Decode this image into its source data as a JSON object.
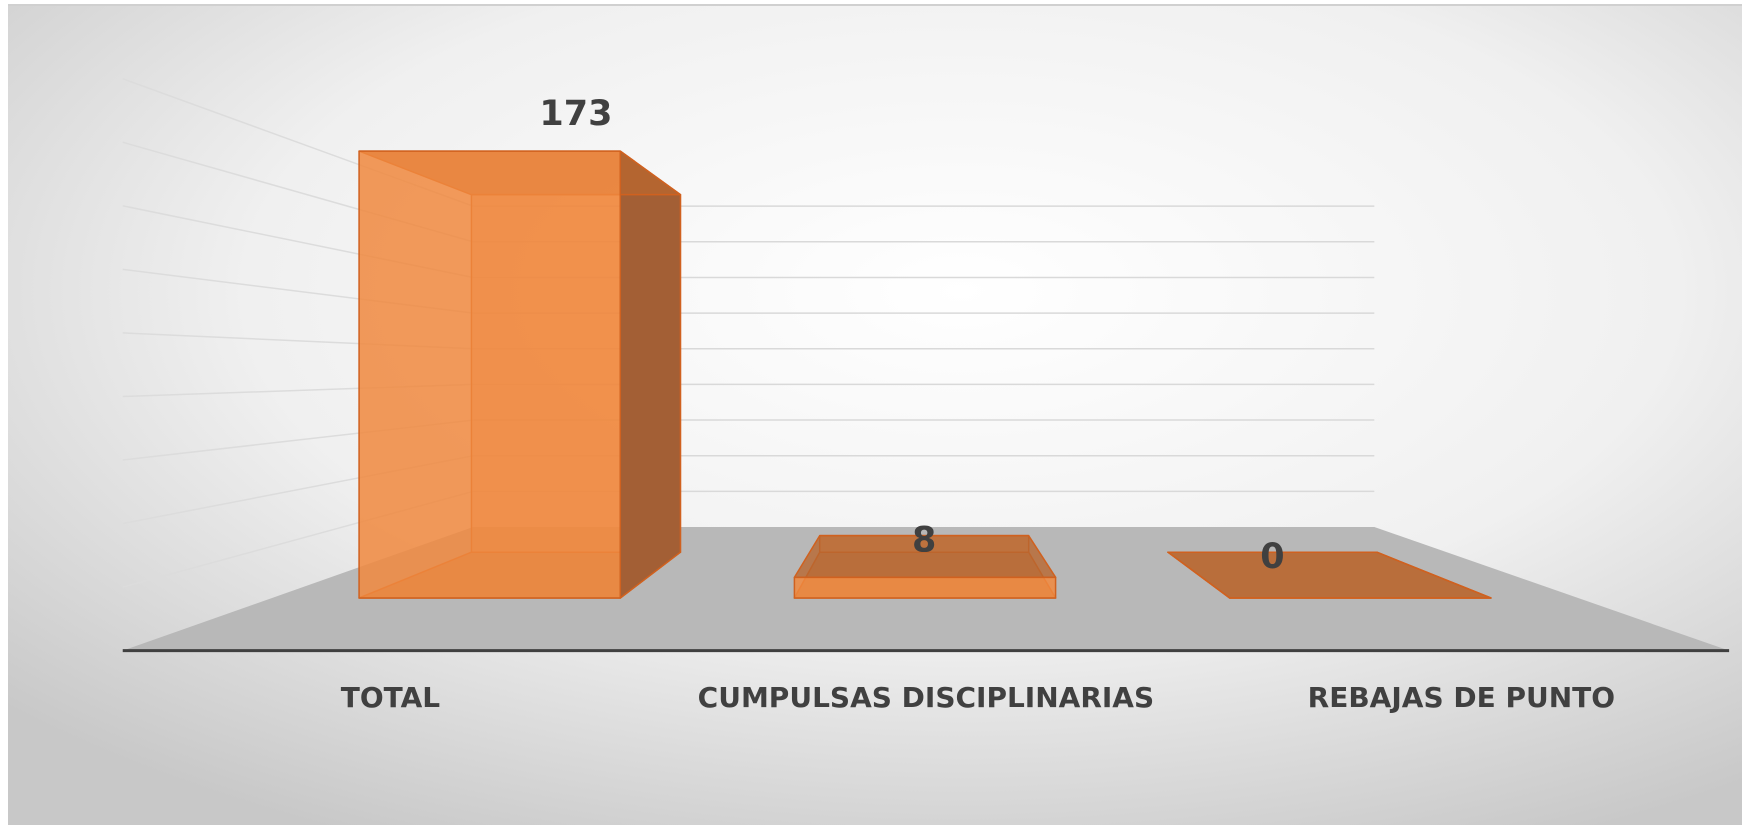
{
  "chart_data": {
    "type": "bar3d",
    "categories": [
      "TOTAL",
      "CUMPULSAS DISCIPLINARIAS",
      "REBAJAS DE PUNTO"
    ],
    "values": [
      173,
      8,
      0
    ],
    "color": "#f0883e",
    "ylim": [
      0,
      180
    ],
    "yticks": [
      0,
      20,
      40,
      60,
      80,
      100,
      120,
      140,
      160,
      180
    ],
    "grid": true
  }
}
